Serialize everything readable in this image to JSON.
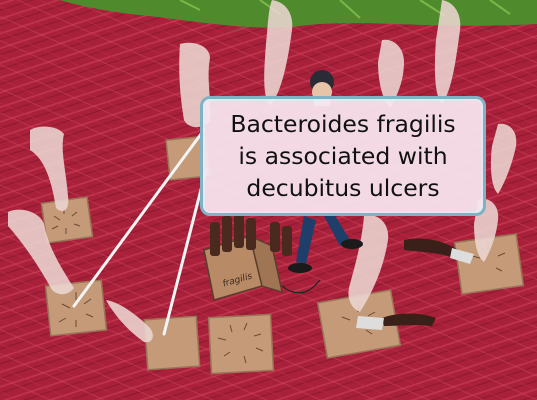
{
  "callout": {
    "lines": [
      "Bacteroides fragilis",
      "is associated with",
      "decubitus ulcers"
    ]
  },
  "crate": {
    "label": "fragilis"
  },
  "colors": {
    "background": "#a8203a",
    "grass": "#4f8a2c",
    "tile": "#c49a78",
    "smoke": "#ecd6d2",
    "callout_border": "#7fb2c4",
    "callout_fill": "#f6e4ee"
  },
  "icons": [
    "scientist-figure",
    "spray-bottle-icon",
    "smoke-plume-icon",
    "bottle-crate-icon"
  ]
}
